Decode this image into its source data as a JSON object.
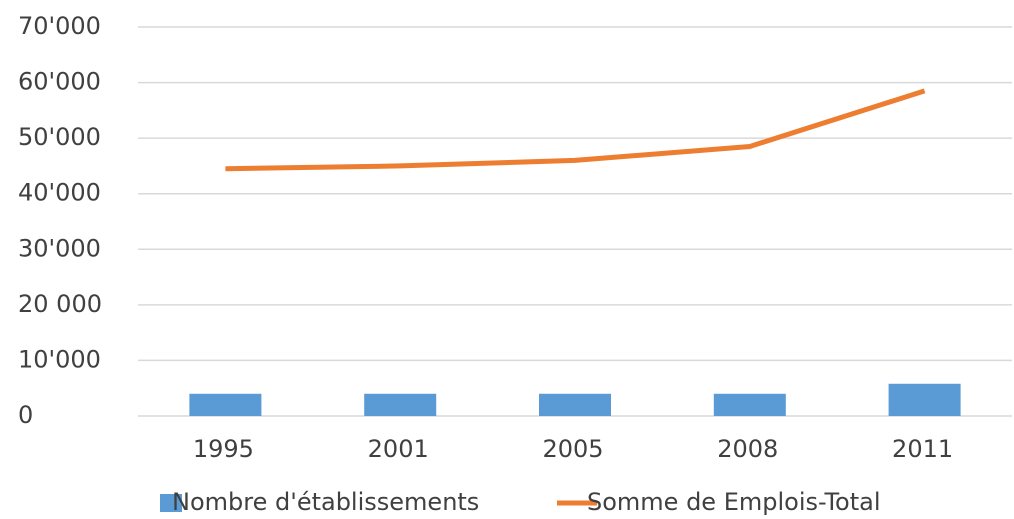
{
  "chart_data": {
    "type": "bar_line",
    "categories": [
      "1995",
      "2001",
      "2005",
      "2008",
      "2011"
    ],
    "series": [
      {
        "name": "Nombre d'établissements",
        "type": "bar",
        "color": "#5b9bd5",
        "values": [
          4000,
          4000,
          4000,
          4000,
          5800
        ]
      },
      {
        "name": "Somme de Emplois-Total",
        "type": "line",
        "color": "#ed7d31",
        "values": [
          44500,
          45000,
          46000,
          48500,
          58500
        ]
      }
    ],
    "ylim": [
      0,
      70000
    ],
    "yticks": [
      0,
      {
        "value": 10000,
        "label": "10'000"
      },
      {
        "value": 20000,
        "label": "20 000"
      },
      {
        "value": 30000,
        "label": "30'000"
      },
      {
        "value": 40000,
        "label": "40'000"
      },
      {
        "value": 50000,
        "label": "50'000"
      },
      {
        "value": 60000,
        "label": "60'000"
      },
      {
        "value": 70000,
        "label": "70'000"
      }
    ],
    "grid": true,
    "legend": "bottom"
  }
}
